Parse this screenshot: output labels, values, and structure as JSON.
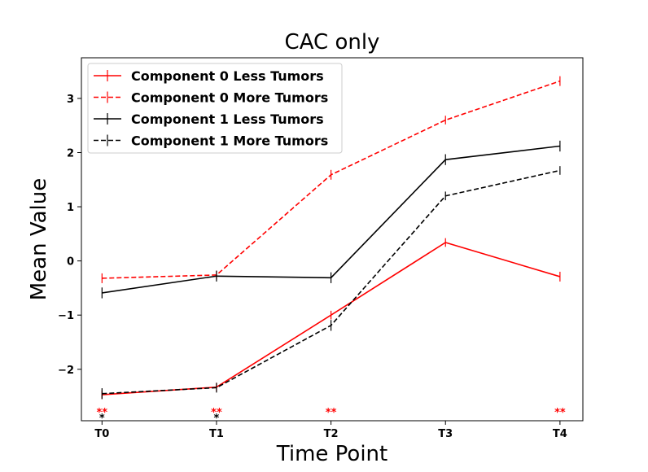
{
  "chart_data": {
    "type": "line",
    "title": "CAC only",
    "xlabel": "Time Point",
    "ylabel": "Mean Value",
    "categories": [
      "T0",
      "T1",
      "T2",
      "T3",
      "T4"
    ],
    "yticks": [
      -2,
      -1,
      0,
      1,
      2,
      3
    ],
    "ytick_labels": [
      "−2",
      "−1",
      "0",
      "1",
      "2",
      "3"
    ],
    "ylim": [
      -2.95,
      3.75
    ],
    "xlim": [
      -0.18,
      4.2
    ],
    "grid": false,
    "legend_position": "top-left",
    "series": [
      {
        "name": "Component 0 Less Tumors",
        "color": "#ff0000",
        "dash": "solid",
        "values": [
          -2.47,
          -2.33,
          -1.0,
          0.34,
          -0.29
        ],
        "err": [
          0.08,
          0.08,
          0.08,
          0.08,
          0.09
        ]
      },
      {
        "name": "Component 0 More Tumors",
        "color": "#ff0000",
        "dash": "dashed",
        "values": [
          -0.32,
          -0.26,
          1.59,
          2.6,
          3.32
        ],
        "err": [
          0.09,
          0.08,
          0.09,
          0.08,
          0.09
        ]
      },
      {
        "name": "Component 1 Less Tumors",
        "color": "#000000",
        "dash": "solid",
        "values": [
          -0.59,
          -0.28,
          -0.31,
          1.87,
          2.12
        ],
        "err": [
          0.1,
          0.1,
          0.1,
          0.1,
          0.1
        ]
      },
      {
        "name": "Component 1 More Tumors",
        "color": "#000000",
        "dash": "dashed",
        "values": [
          -2.45,
          -2.34,
          -1.19,
          1.2,
          1.67
        ],
        "err": [
          0.1,
          0.09,
          0.1,
          0.08,
          0.08
        ]
      }
    ],
    "annotations": [
      {
        "x": "T0",
        "text": "**",
        "color": "#ff0000",
        "row": 0
      },
      {
        "x": "T1",
        "text": "**",
        "color": "#ff0000",
        "row": 0
      },
      {
        "x": "T2",
        "text": "**",
        "color": "#ff0000",
        "row": 0
      },
      {
        "x": "T4",
        "text": "**",
        "color": "#ff0000",
        "row": 0
      },
      {
        "x": "T0",
        "text": "*",
        "color": "#000000",
        "row": 1
      },
      {
        "x": "T1",
        "text": "*",
        "color": "#000000",
        "row": 1
      }
    ]
  }
}
